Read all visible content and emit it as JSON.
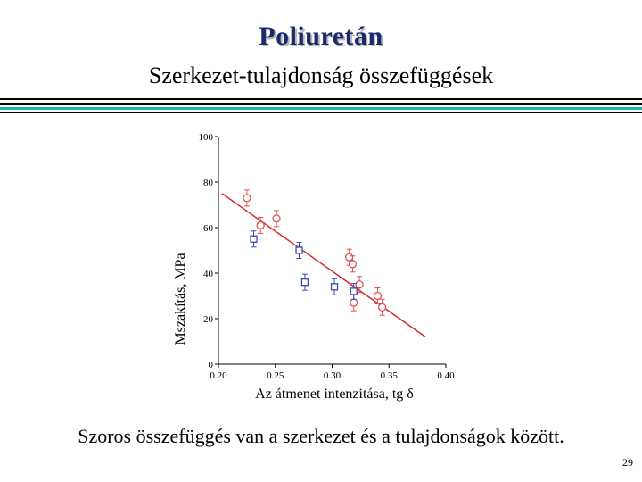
{
  "slide": {
    "title": "Poliuretán",
    "subtitle": "Szerkezet-tulajdonság összefüggések",
    "caption": "Szoros összefüggés van a szerkezet és a tulajdonságok között.",
    "page_number": "29"
  },
  "chart_data": {
    "type": "scatter",
    "title": "",
    "xlabel": "Az átmenet intenzitása, tg δ",
    "ylabel": "Mszakítás, MPa",
    "xlim": [
      0.2,
      0.4
    ],
    "ylim": [
      0,
      100
    ],
    "x_ticks": [
      "0.20",
      "0.25",
      "0.30",
      "0.35",
      "0.40"
    ],
    "y_ticks": [
      "0",
      "20",
      "40",
      "60",
      "80",
      "100"
    ],
    "grid": false,
    "series": [
      {
        "marker": "circle",
        "color": "#e05050",
        "points": [
          {
            "x": 0.225,
            "y": 73
          },
          {
            "x": 0.237,
            "y": 61
          },
          {
            "x": 0.251,
            "y": 64
          },
          {
            "x": 0.315,
            "y": 47
          },
          {
            "x": 0.318,
            "y": 44
          },
          {
            "x": 0.319,
            "y": 27
          },
          {
            "x": 0.324,
            "y": 35
          },
          {
            "x": 0.34,
            "y": 30
          },
          {
            "x": 0.344,
            "y": 25
          }
        ]
      },
      {
        "marker": "square",
        "color": "#3a4ab0",
        "points": [
          {
            "x": 0.231,
            "y": 55
          },
          {
            "x": 0.271,
            "y": 50
          },
          {
            "x": 0.276,
            "y": 36
          },
          {
            "x": 0.302,
            "y": 34
          },
          {
            "x": 0.319,
            "y": 32
          }
        ]
      }
    ],
    "trendline": {
      "color": "#d62a2a",
      "x": [
        0.203,
        0.382
      ],
      "y": [
        75,
        12
      ]
    }
  }
}
